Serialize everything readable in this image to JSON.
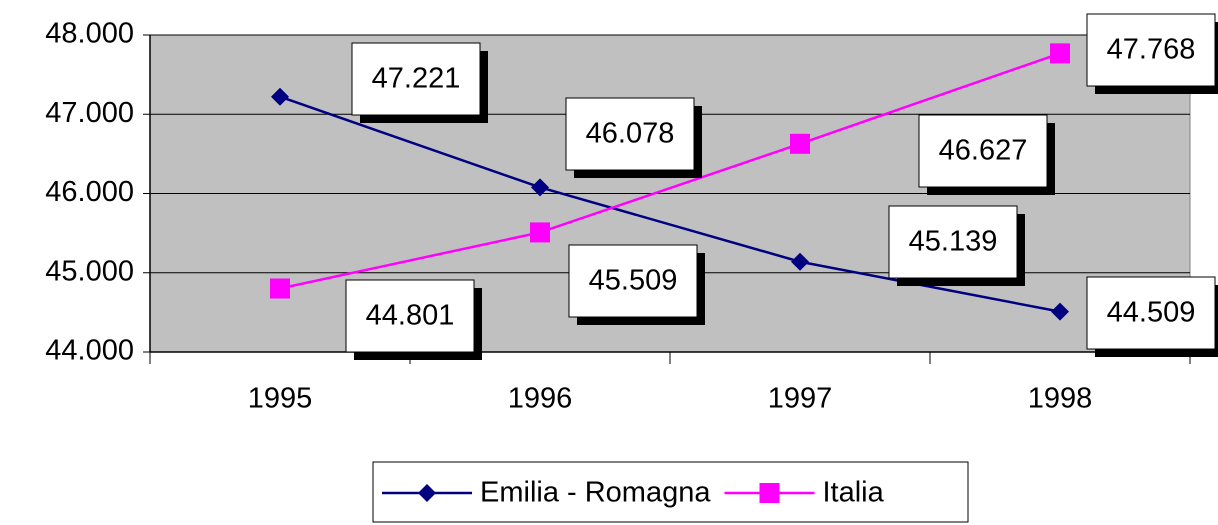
{
  "chart_data": {
    "type": "line",
    "categories": [
      "1995",
      "1996",
      "1997",
      "1998"
    ],
    "series": [
      {
        "name": "Emilia - Romagna",
        "color": "#000080",
        "marker": "diamond",
        "values": [
          47221,
          46078,
          45139,
          44509
        ],
        "value_labels": [
          "47.221",
          "46.078",
          "45.139",
          "44.509"
        ]
      },
      {
        "name": "Italia",
        "color": "#ff00ff",
        "marker": "square",
        "values": [
          44801,
          45509,
          46627,
          47768
        ],
        "value_labels": [
          "44.801",
          "45.509",
          "46.627",
          "47.768"
        ]
      }
    ],
    "ylim": [
      44000,
      48000
    ],
    "yticks": [
      {
        "value": 44000,
        "label": "44.000"
      },
      {
        "value": 45000,
        "label": "45.000"
      },
      {
        "value": 46000,
        "label": "46.000"
      },
      {
        "value": 47000,
        "label": "47.000"
      },
      {
        "value": 48000,
        "label": "48.000"
      }
    ],
    "grid": true,
    "plot_background": "#c0c0c0",
    "legend": "bottom"
  }
}
